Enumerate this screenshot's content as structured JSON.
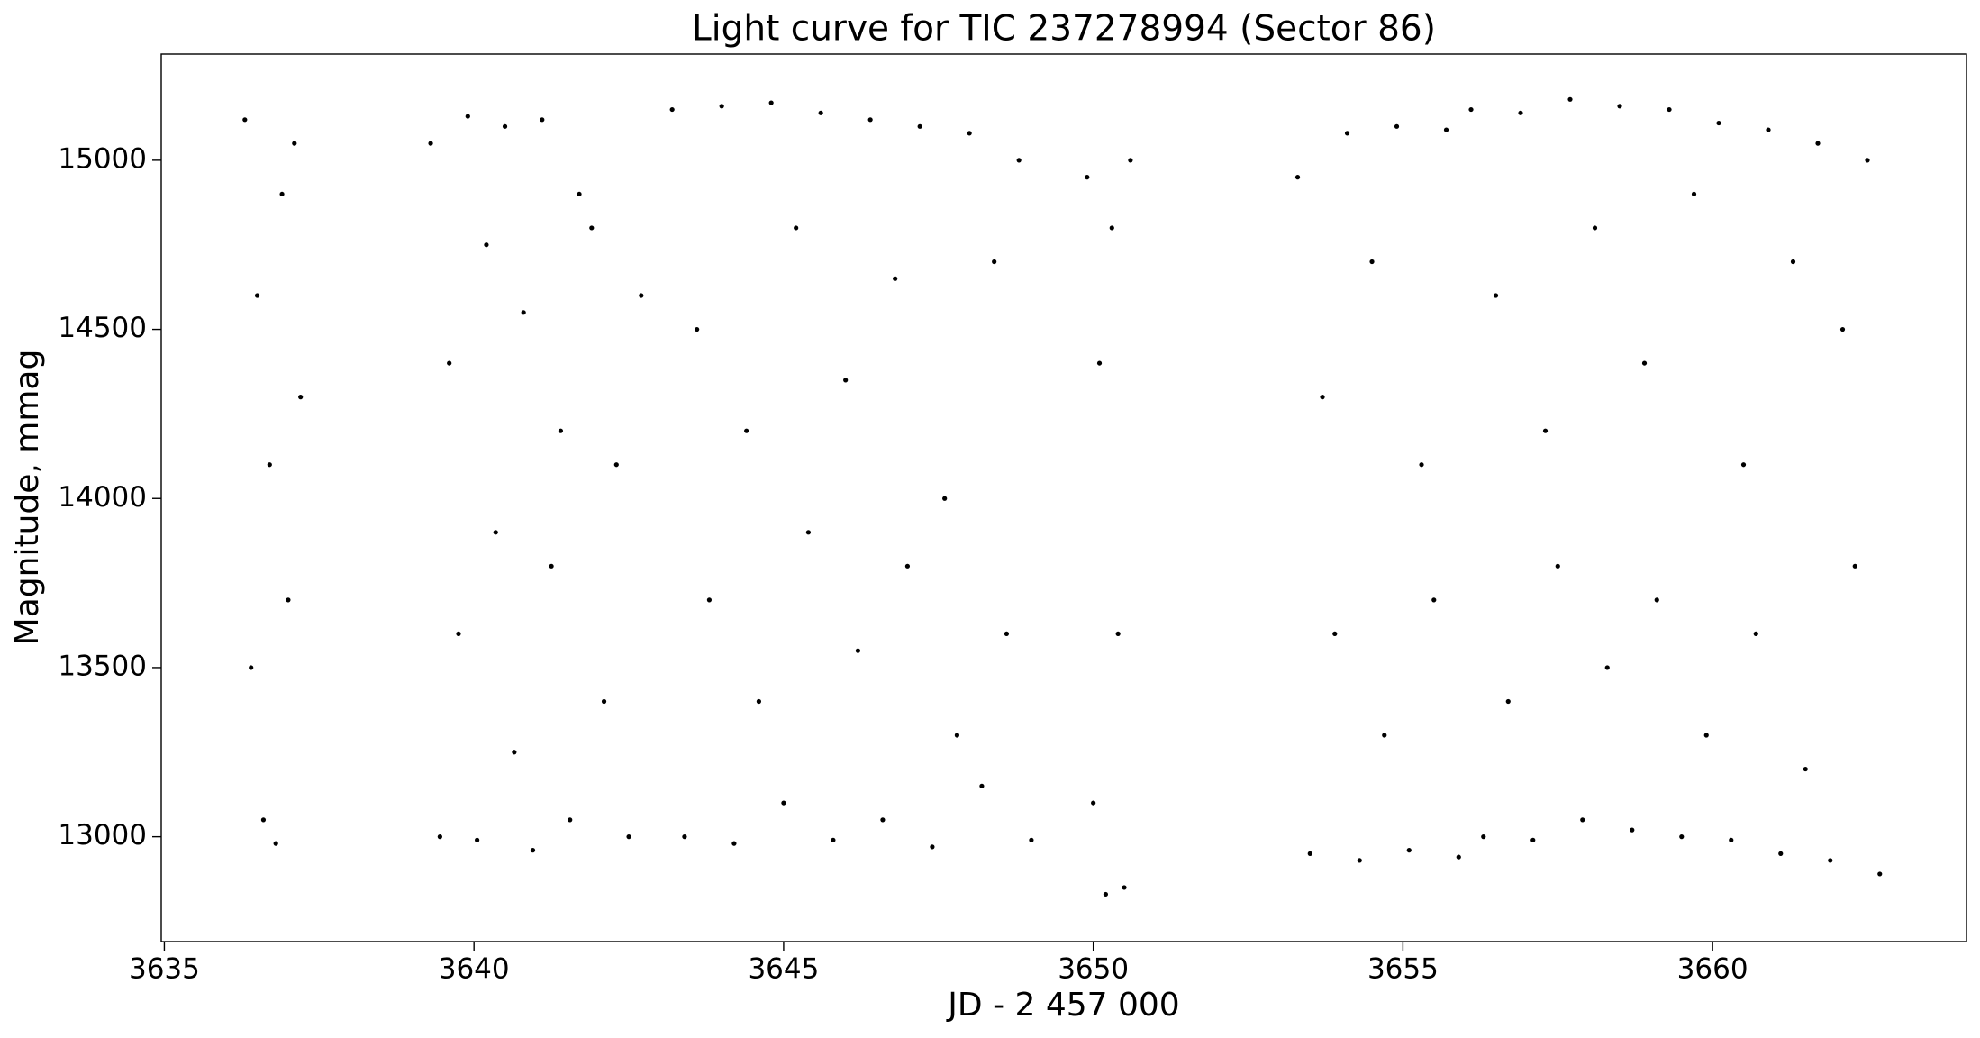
{
  "chart_data": {
    "type": "scatter",
    "title": "Light curve for TIC 237278994 (Sector 86)",
    "x_label": "JD - 2 457 000",
    "y_label": "Magnitude, mmag",
    "color": "#000000",
    "xlim": [
      3634.95,
      3664.1
    ],
    "ylim": [
      12690,
      15314
    ],
    "xticks": [
      3635,
      3640,
      3645,
      3650,
      3655,
      3660
    ],
    "yticks": [
      13000,
      13500,
      14000,
      14500,
      15000
    ],
    "x": [
      3636.3,
      3636.4,
      3636.5,
      3636.6,
      3636.7,
      3636.8,
      3636.9,
      3637.0,
      3637.1,
      3637.2,
      3639.3,
      3639.45,
      3639.6,
      3639.75,
      3639.9,
      3640.05,
      3640.2,
      3640.35,
      3640.5,
      3640.65,
      3640.8,
      3640.95,
      3641.1,
      3641.25,
      3641.4,
      3641.55,
      3641.7,
      3641.9,
      3642.1,
      3642.3,
      3642.5,
      3642.7,
      3643.2,
      3643.4,
      3643.6,
      3643.8,
      3644.0,
      3644.2,
      3644.4,
      3644.6,
      3644.8,
      3645.0,
      3645.2,
      3645.4,
      3645.6,
      3645.8,
      3646.0,
      3646.2,
      3646.4,
      3646.6,
      3646.8,
      3647.0,
      3647.2,
      3647.4,
      3647.6,
      3647.8,
      3648.0,
      3648.2,
      3648.4,
      3648.6,
      3648.8,
      3649.0,
      3649.9,
      3650.0,
      3650.1,
      3650.2,
      3650.3,
      3650.4,
      3650.5,
      3650.6,
      3653.3,
      3653.5,
      3653.7,
      3653.9,
      3654.1,
      3654.3,
      3654.5,
      3654.7,
      3654.9,
      3655.1,
      3655.3,
      3655.5,
      3655.7,
      3655.9,
      3656.1,
      3656.3,
      3656.5,
      3656.7,
      3656.9,
      3657.1,
      3657.3,
      3657.5,
      3657.7,
      3657.9,
      3658.1,
      3658.3,
      3658.5,
      3658.7,
      3658.9,
      3659.1,
      3659.3,
      3659.5,
      3659.7,
      3659.9,
      3660.1,
      3660.3,
      3660.5,
      3660.7,
      3660.9,
      3661.1,
      3661.3,
      3661.5,
      3661.7,
      3661.9,
      3662.1,
      3662.3,
      3662.5,
      3662.7
    ],
    "values": [
      15120,
      13500,
      14600,
      13050,
      14100,
      12980,
      14900,
      13700,
      15050,
      14300,
      15050,
      13000,
      14400,
      13600,
      15130,
      12990,
      14750,
      13900,
      15100,
      13250,
      14550,
      12960,
      15120,
      13800,
      14200,
      13050,
      14900,
      14800,
      13400,
      14100,
      13000,
      14600,
      15150,
      13000,
      14500,
      13700,
      15160,
      12980,
      14200,
      13400,
      15170,
      13100,
      14800,
      13900,
      15140,
      12990,
      14350,
      13550,
      15120,
      13050,
      14650,
      13800,
      15100,
      12970,
      14000,
      13300,
      15080,
      13150,
      14700,
      13600,
      15000,
      12990,
      14950,
      13100,
      14400,
      12830,
      14800,
      13600,
      12850,
      15000,
      14950,
      12950,
      14300,
      13600,
      15080,
      12930,
      14700,
      13300,
      15100,
      12960,
      14100,
      13700,
      15090,
      12940,
      15150,
      13000,
      14600,
      13400,
      15140,
      12990,
      14200,
      13800,
      15180,
      13050,
      14800,
      13500,
      15160,
      13020,
      14400,
      13700,
      15150,
      13000,
      14900,
      13300,
      15110,
      12990,
      14100,
      13600,
      15090,
      12950,
      14700,
      13200,
      15050,
      12930,
      14500,
      13800,
      15000,
      12890
    ]
  }
}
